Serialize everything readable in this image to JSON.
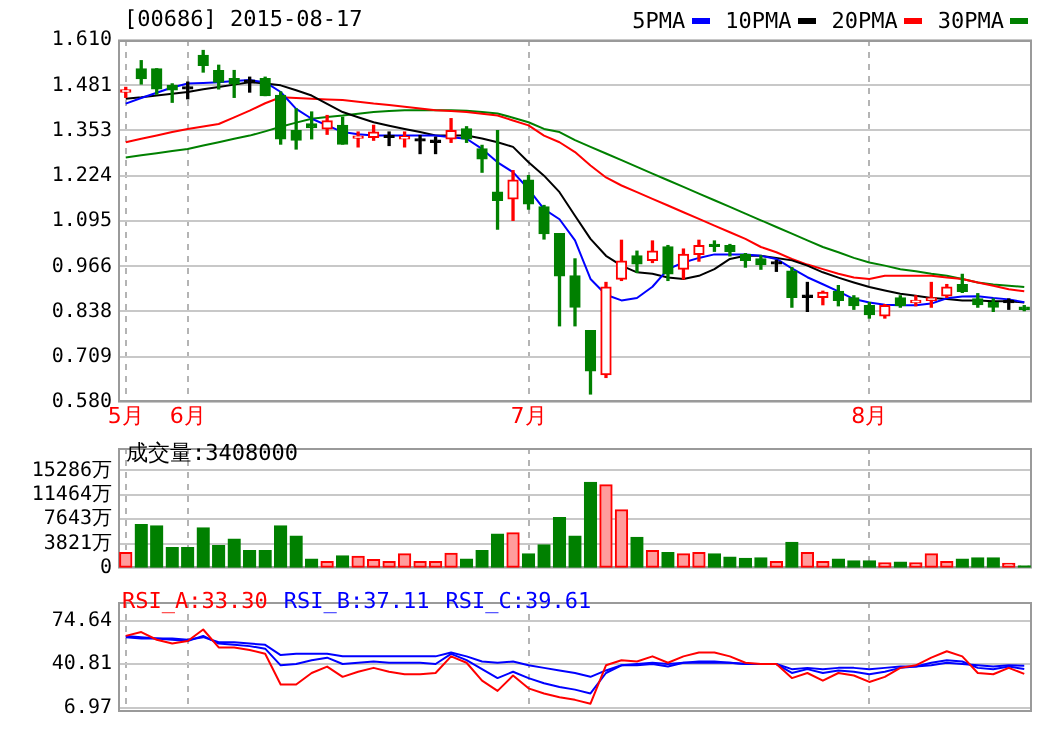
{
  "chart_data": [
    {
      "type": "candlestick",
      "title": "[00686] 2015-08-17",
      "categories": [
        "5月",
        null,
        null,
        null,
        "6月",
        null,
        null,
        null,
        null,
        null,
        null,
        null,
        null,
        null,
        null,
        null,
        null,
        null,
        null,
        null,
        null,
        null,
        null,
        null,
        null,
        null,
        "7月",
        null,
        null,
        null,
        null,
        null,
        null,
        null,
        null,
        null,
        null,
        null,
        null,
        null,
        null,
        null,
        null,
        null,
        null,
        null,
        null,
        null,
        "8月",
        null,
        null,
        null,
        null,
        null,
        null,
        null,
        null,
        null,
        null
      ],
      "ohlc": [
        [
          1.462,
          1.475,
          1.447,
          1.464
        ],
        [
          1.528,
          1.551,
          1.485,
          1.5
        ],
        [
          1.528,
          1.528,
          1.456,
          1.471
        ],
        [
          1.481,
          1.485,
          1.433,
          1.468
        ],
        [
          1.471,
          1.49,
          1.443,
          1.471
        ],
        [
          1.566,
          1.58,
          1.519,
          1.538
        ],
        [
          1.523,
          1.538,
          1.471,
          1.49
        ],
        [
          1.5,
          1.523,
          1.447,
          1.485
        ],
        [
          1.49,
          1.504,
          1.462,
          1.49
        ],
        [
          1.5,
          1.504,
          1.452,
          1.452
        ],
        [
          1.452,
          1.462,
          1.314,
          1.329
        ],
        [
          1.352,
          1.414,
          1.3,
          1.325
        ],
        [
          1.371,
          1.405,
          1.329,
          1.361
        ],
        [
          1.357,
          1.395,
          1.342,
          1.38
        ],
        [
          1.367,
          1.39,
          1.314,
          1.314
        ],
        [
          1.331,
          1.348,
          1.306,
          1.333
        ],
        [
          1.333,
          1.367,
          1.325,
          1.348
        ],
        [
          1.333,
          1.348,
          1.31,
          1.333
        ],
        [
          1.329,
          1.348,
          1.306,
          1.333
        ],
        [
          1.323,
          1.338,
          1.287,
          1.323
        ],
        [
          1.319,
          1.333,
          1.287,
          1.319
        ],
        [
          1.329,
          1.386,
          1.319,
          1.352
        ],
        [
          1.357,
          1.363,
          1.319,
          1.329
        ],
        [
          1.3,
          1.31,
          1.234,
          1.272
        ],
        [
          1.177,
          1.352,
          1.072,
          1.154
        ],
        [
          1.158,
          1.238,
          1.097,
          1.211
        ],
        [
          1.211,
          1.224,
          1.129,
          1.144
        ],
        [
          1.135,
          1.139,
          1.044,
          1.059
        ],
        [
          1.059,
          1.059,
          0.797,
          0.939
        ],
        [
          0.939,
          0.987,
          0.797,
          0.85
        ],
        [
          0.783,
          0.783,
          0.603,
          0.669
        ],
        [
          0.658,
          0.92,
          0.65,
          0.907
        ],
        [
          0.93,
          1.04,
          0.926,
          0.981
        ],
        [
          0.996,
          1.009,
          0.949,
          0.973
        ],
        [
          0.983,
          1.038,
          0.977,
          1.009
        ],
        [
          1.021,
          1.025,
          0.926,
          0.945
        ],
        [
          0.958,
          1.015,
          0.93,
          1.0
        ],
        [
          1.0,
          1.04,
          0.981,
          1.025
        ],
        [
          1.025,
          1.038,
          1.009,
          1.023
        ],
        [
          1.025,
          1.028,
          0.996,
          1.009
        ],
        [
          1.0,
          1.002,
          0.964,
          0.983
        ],
        [
          0.987,
          0.996,
          0.958,
          0.971
        ],
        [
          0.973,
          0.983,
          0.952,
          0.973
        ],
        [
          0.952,
          0.962,
          0.85,
          0.878
        ],
        [
          0.878,
          0.92,
          0.838,
          0.878
        ],
        [
          0.878,
          0.895,
          0.857,
          0.892
        ],
        [
          0.895,
          0.911,
          0.854,
          0.869
        ],
        [
          0.876,
          0.882,
          0.844,
          0.854
        ],
        [
          0.854,
          0.863,
          0.819,
          0.829
        ],
        [
          0.825,
          0.857,
          0.819,
          0.854
        ],
        [
          0.876,
          0.882,
          0.85,
          0.854
        ],
        [
          0.863,
          0.882,
          0.854,
          0.869
        ],
        [
          0.869,
          0.92,
          0.85,
          0.876
        ],
        [
          0.882,
          0.914,
          0.878,
          0.907
        ],
        [
          0.914,
          0.943,
          0.892,
          0.895
        ],
        [
          0.873,
          0.888,
          0.85,
          0.857
        ],
        [
          0.863,
          0.873,
          0.838,
          0.85
        ],
        [
          0.863,
          0.873,
          0.844,
          0.863
        ],
        [
          0.85,
          0.854,
          0.84,
          0.844
        ]
      ],
      "colors": [
        "#ff0000",
        "#008000",
        "#008000",
        "#008000",
        "#000000",
        "#008000",
        "#008000",
        "#008000",
        "#000000",
        "#008000",
        "#008000",
        "#008000",
        "#008000",
        "#ff0000",
        "#008000",
        "#ff0000",
        "#ff0000",
        "#000000",
        "#ff0000",
        "#000000",
        "#000000",
        "#ff0000",
        "#008000",
        "#008000",
        "#008000",
        "#ff0000",
        "#008000",
        "#008000",
        "#008000",
        "#008000",
        "#008000",
        "#ff0000",
        "#ff0000",
        "#008000",
        "#ff0000",
        "#008000",
        "#ff0000",
        "#ff0000",
        "#008000",
        "#008000",
        "#008000",
        "#008000",
        "#000000",
        "#008000",
        "#000000",
        "#ff0000",
        "#008000",
        "#008000",
        "#008000",
        "#ff0000",
        "#008000",
        "#ff0000",
        "#ff0000",
        "#ff0000",
        "#008000",
        "#008000",
        "#008000",
        "#000000",
        "#008000"
      ],
      "series": [
        {
          "name": "5PMA",
          "type": "line",
          "color": "#0000ff",
          "values": [
            1.429,
            1.445,
            1.46,
            1.475,
            1.486,
            1.488,
            1.49,
            1.493,
            1.496,
            1.49,
            1.462,
            1.414,
            1.386,
            1.367,
            1.348,
            1.342,
            1.338,
            1.338,
            1.338,
            1.338,
            1.338,
            1.333,
            1.329,
            1.3,
            1.262,
            1.234,
            1.186,
            1.129,
            1.1,
            1.04,
            0.93,
            0.885,
            0.869,
            0.876,
            0.908,
            0.958,
            0.977,
            0.99,
            1.0,
            1.0,
            1.0,
            0.996,
            0.987,
            0.96,
            0.935,
            0.915,
            0.895,
            0.873,
            0.863,
            0.857,
            0.855,
            0.855,
            0.86,
            0.875,
            0.88,
            0.881,
            0.876,
            0.872,
            0.864
          ]
        },
        {
          "name": "10PMA",
          "type": "line",
          "color": "#000000",
          "values": [
            1.443,
            1.447,
            1.452,
            1.457,
            1.462,
            1.47,
            1.476,
            1.483,
            1.49,
            1.486,
            1.481,
            1.467,
            1.452,
            1.428,
            1.405,
            1.39,
            1.376,
            1.366,
            1.357,
            1.348,
            1.338,
            1.338,
            1.338,
            1.33,
            1.319,
            1.306,
            1.262,
            1.224,
            1.177,
            1.11,
            1.044,
            0.996,
            0.968,
            0.949,
            0.945,
            0.934,
            0.93,
            0.939,
            0.958,
            0.987,
            0.996,
            0.996,
            0.99,
            0.983,
            0.968,
            0.949,
            0.934,
            0.92,
            0.907,
            0.897,
            0.888,
            0.882,
            0.876,
            0.873,
            0.869,
            0.869,
            0.867,
            0.867,
            0.863
          ]
        },
        {
          "name": "20PMA",
          "type": "line",
          "color": "#ff0000",
          "values": [
            1.319,
            1.329,
            1.338,
            1.348,
            1.357,
            1.364,
            1.371,
            1.39,
            1.409,
            1.43,
            1.447,
            1.445,
            1.443,
            1.441,
            1.439,
            1.434,
            1.429,
            1.425,
            1.42,
            1.415,
            1.41,
            1.408,
            1.405,
            1.4,
            1.395,
            1.381,
            1.367,
            1.338,
            1.319,
            1.291,
            1.253,
            1.219,
            1.196,
            1.177,
            1.158,
            1.139,
            1.12,
            1.101,
            1.082,
            1.063,
            1.044,
            1.021,
            1.006,
            0.987,
            0.971,
            0.958,
            0.945,
            0.934,
            0.93,
            0.939,
            0.939,
            0.939,
            0.939,
            0.934,
            0.93,
            0.92,
            0.911,
            0.901,
            0.895
          ]
        },
        {
          "name": "30PMA",
          "type": "line",
          "color": "#008000",
          "values": [
            1.276,
            1.282,
            1.288,
            1.294,
            1.3,
            1.31,
            1.319,
            1.329,
            1.338,
            1.35,
            1.363,
            1.375,
            1.386,
            1.391,
            1.395,
            1.4,
            1.405,
            1.408,
            1.41,
            1.41,
            1.41,
            1.41,
            1.409,
            1.405,
            1.401,
            1.389,
            1.376,
            1.357,
            1.348,
            1.325,
            1.306,
            1.287,
            1.268,
            1.249,
            1.23,
            1.211,
            1.192,
            1.173,
            1.154,
            1.135,
            1.116,
            1.097,
            1.078,
            1.059,
            1.04,
            1.021,
            1.006,
            0.99,
            0.977,
            0.968,
            0.958,
            0.952,
            0.945,
            0.939,
            0.93,
            0.92,
            0.914,
            0.911,
            0.907
          ]
        }
      ],
      "ylim": [
        0.58,
        1.61
      ],
      "yticks": [
        {
          "value": 0.58,
          "label": "0.580"
        },
        0.709,
        0.838,
        0.966,
        1.095,
        1.224,
        1.353,
        1.481,
        {
          "value": 1.61,
          "label": "1.610"
        }
      ],
      "grid": true,
      "legend": "top right",
      "marker": "none"
    },
    {
      "type": "bar",
      "title": "成交量:3408000",
      "categories": [
        null,
        null,
        null,
        null,
        null,
        null,
        null,
        null,
        null,
        null,
        null,
        null,
        null,
        null,
        null,
        null,
        null,
        null,
        null,
        null,
        null,
        null,
        null,
        null,
        null,
        null,
        null,
        null,
        null,
        null,
        null,
        null,
        null,
        null,
        null,
        null,
        null,
        null,
        null,
        null,
        null,
        null,
        null,
        null,
        null,
        null,
        null,
        null,
        null,
        null,
        null,
        null,
        null,
        null,
        null,
        null,
        null,
        null,
        null
      ],
      "values": [
        2400,
        6800,
        6600,
        3200,
        3200,
        6300,
        3500,
        4500,
        2700,
        2700,
        6600,
        5000,
        1400,
        1000,
        1900,
        1800,
        1300,
        1000,
        2200,
        1000,
        1000,
        2300,
        1400,
        2700,
        5300,
        5500,
        2200,
        3600,
        7900,
        5000,
        13400,
        13000,
        9100,
        4800,
        2700,
        2400,
        2200,
        2400,
        2200,
        1700,
        1500,
        1600,
        1000,
        4000,
        2400,
        1000,
        1400,
        1100,
        1100,
        800,
        900,
        800,
        2200,
        1000,
        1400,
        1600,
        1600,
        700,
        340.8
      ],
      "colors": [
        "#ff0000",
        "#008000",
        "#008000",
        "#008000",
        "#008000",
        "#008000",
        "#008000",
        "#008000",
        "#008000",
        "#008000",
        "#008000",
        "#008000",
        "#008000",
        "#ff0000",
        "#008000",
        "#ff0000",
        "#ff0000",
        "#ff0000",
        "#ff0000",
        "#ff0000",
        "#ff0000",
        "#ff0000",
        "#008000",
        "#008000",
        "#008000",
        "#ff0000",
        "#008000",
        "#008000",
        "#008000",
        "#008000",
        "#008000",
        "#ff0000",
        "#ff0000",
        "#008000",
        "#ff0000",
        "#008000",
        "#ff0000",
        "#ff0000",
        "#008000",
        "#008000",
        "#008000",
        "#008000",
        "#ff0000",
        "#008000",
        "#ff0000",
        "#ff0000",
        "#008000",
        "#008000",
        "#008000",
        "#ff0000",
        "#008000",
        "#ff0000",
        "#ff0000",
        "#ff0000",
        "#008000",
        "#008000",
        "#008000",
        "#ff0000",
        "#008000"
      ],
      "ylim": [
        0,
        18800
      ],
      "yticks": [
        0,
        {
          "value": 3821,
          "label": "3821万"
        },
        {
          "value": 7643,
          "label": "7643万"
        },
        {
          "value": 11464,
          "label": "11464万"
        },
        {
          "value": 15286,
          "label": "15286万"
        }
      ],
      "grid": true,
      "tick_labels": "y"
    },
    {
      "type": "line",
      "categories": [
        null,
        null,
        null,
        null,
        null,
        null,
        null,
        null,
        null,
        null,
        null,
        null,
        null,
        null,
        null,
        null,
        null,
        null,
        null,
        null,
        null,
        null,
        null,
        null,
        null,
        null,
        null,
        null,
        null,
        null,
        null,
        null,
        null,
        null,
        null,
        null,
        null,
        null,
        null,
        null,
        null,
        null,
        null,
        null,
        null,
        null,
        null,
        null,
        null,
        null,
        null,
        null,
        null,
        null,
        null,
        null,
        null,
        null,
        null
      ],
      "series": [
        {
          "name": "RSI_A:33.30",
          "color": "#ff0000",
          "values": [
            63,
            66,
            60,
            57,
            59,
            68,
            54,
            54,
            52,
            49,
            25,
            25,
            34,
            39,
            31,
            35,
            38,
            35,
            33,
            33,
            34,
            47,
            42,
            28,
            20,
            32,
            22,
            18,
            15,
            13,
            10,
            40,
            44,
            43,
            47,
            42,
            47,
            50,
            50,
            47,
            42,
            41,
            41,
            30,
            34,
            28,
            34,
            32,
            27,
            31,
            38,
            40,
            46,
            51,
            47,
            34,
            33,
            38,
            33.3
          ]
        },
        {
          "name": "RSI_B:37.11",
          "color": "#0000ff",
          "values": [
            62,
            61,
            61,
            60,
            59,
            63,
            57,
            56,
            55,
            53,
            40,
            41,
            44,
            46,
            41,
            42,
            43,
            42,
            42,
            42,
            41,
            49,
            44,
            37,
            30,
            35,
            30,
            26,
            23,
            21,
            18,
            34,
            40,
            40,
            41,
            39,
            42,
            43,
            43,
            42,
            41,
            41,
            41,
            34,
            37,
            34,
            36,
            35,
            33,
            35,
            38,
            39,
            42,
            44,
            43,
            38,
            37,
            39,
            37.11
          ]
        },
        {
          "name": "RSI_C:39.61",
          "color": "#0000ff",
          "values": [
            63,
            62,
            61,
            61,
            60,
            62,
            58,
            58,
            57,
            56,
            48,
            49,
            49,
            49,
            47,
            47,
            47,
            47,
            47,
            47,
            47,
            50,
            47,
            43,
            42,
            43,
            40,
            38,
            36,
            34,
            31,
            36,
            40,
            41,
            42,
            41,
            42,
            42,
            42,
            42,
            41,
            41,
            41,
            37,
            38,
            37,
            38,
            38,
            37,
            38,
            39,
            39,
            40,
            42,
            41,
            40,
            39,
            40,
            39.61
          ]
        }
      ],
      "ylim": [
        3.5,
        89.5
      ],
      "yticks": [
        6.97,
        40.81,
        74.64
      ],
      "grid": true,
      "legend": "top left",
      "marker": "none",
      "tick_labels": "y"
    }
  ]
}
